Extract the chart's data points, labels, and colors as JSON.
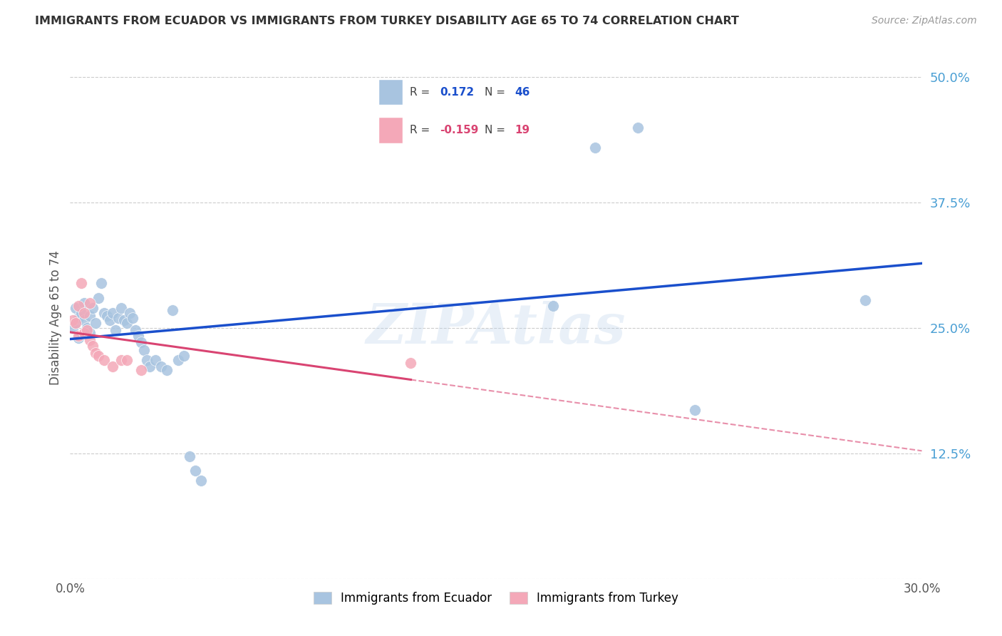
{
  "title": "IMMIGRANTS FROM ECUADOR VS IMMIGRANTS FROM TURKEY DISABILITY AGE 65 TO 74 CORRELATION CHART",
  "source": "Source: ZipAtlas.com",
  "ylabel": "Disability Age 65 to 74",
  "xlim": [
    0.0,
    0.3
  ],
  "ylim": [
    0.0,
    0.52
  ],
  "ytick_vals": [
    0.0,
    0.125,
    0.25,
    0.375,
    0.5
  ],
  "ytick_labels": [
    "",
    "12.5%",
    "25.0%",
    "37.5%",
    "50.0%"
  ],
  "ecuador_color": "#a8c4e0",
  "turkey_color": "#f4a8b8",
  "ecuador_line_color": "#1a4fcc",
  "turkey_line_color": "#d94472",
  "watermark": "ZIPAtlas",
  "R_ecuador": 0.172,
  "N_ecuador": 46,
  "R_turkey": -0.159,
  "N_turkey": 19,
  "ecuador_x": [
    0.001,
    0.002,
    0.002,
    0.003,
    0.003,
    0.004,
    0.005,
    0.005,
    0.006,
    0.007,
    0.007,
    0.008,
    0.009,
    0.01,
    0.011,
    0.012,
    0.013,
    0.014,
    0.015,
    0.016,
    0.017,
    0.018,
    0.019,
    0.02,
    0.021,
    0.022,
    0.023,
    0.024,
    0.025,
    0.026,
    0.027,
    0.028,
    0.03,
    0.032,
    0.034,
    0.036,
    0.038,
    0.04,
    0.042,
    0.044,
    0.046,
    0.17,
    0.185,
    0.2,
    0.22,
    0.28
  ],
  "ecuador_y": [
    0.25,
    0.255,
    0.27,
    0.26,
    0.24,
    0.265,
    0.275,
    0.258,
    0.25,
    0.262,
    0.245,
    0.27,
    0.255,
    0.28,
    0.295,
    0.265,
    0.262,
    0.258,
    0.265,
    0.248,
    0.26,
    0.27,
    0.258,
    0.255,
    0.265,
    0.26,
    0.248,
    0.242,
    0.236,
    0.228,
    0.218,
    0.212,
    0.218,
    0.212,
    0.208,
    0.268,
    0.218,
    0.222,
    0.122,
    0.108,
    0.098,
    0.272,
    0.43,
    0.45,
    0.168,
    0.278
  ],
  "turkey_x": [
    0.001,
    0.002,
    0.003,
    0.003,
    0.004,
    0.005,
    0.005,
    0.006,
    0.007,
    0.007,
    0.008,
    0.009,
    0.01,
    0.012,
    0.015,
    0.018,
    0.02,
    0.025,
    0.12
  ],
  "turkey_y": [
    0.258,
    0.255,
    0.272,
    0.242,
    0.295,
    0.265,
    0.245,
    0.248,
    0.275,
    0.238,
    0.232,
    0.225,
    0.222,
    0.218,
    0.212,
    0.218,
    0.218,
    0.208,
    0.215
  ],
  "background_color": "#ffffff",
  "grid_color": "#cccccc"
}
